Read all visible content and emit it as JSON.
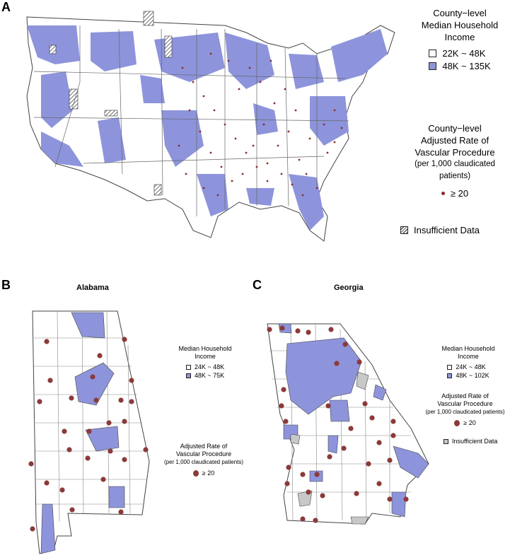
{
  "panels": {
    "a": {
      "letter": "A",
      "legend_income_title": [
        "County−level",
        "Median Household",
        "Income"
      ],
      "income_low": "22K ~ 48K",
      "income_high": "48K ~ 135K",
      "legend_rate_title": [
        "County−level",
        "Adjusted Rate of",
        "Vascular Procedure",
        "(per 1,000 claudicated patients)"
      ],
      "rate_label": "≥ 20",
      "insufficient": "Insufficient Data"
    },
    "b": {
      "letter": "B",
      "title": "Alabama",
      "legend_income_title": [
        "Median Household",
        "Income"
      ],
      "income_low": "24K ~ 48K",
      "income_high": "48K ~ 75K",
      "legend_rate_title": [
        "Adjusted Rate of",
        "Vascular Procedure",
        "(per 1,000 claudicated patients)"
      ],
      "rate_label": "≥ 20"
    },
    "c": {
      "letter": "C",
      "title": "Georgia",
      "legend_income_title": [
        "Median Household",
        "Income"
      ],
      "income_low": "24K ~ 48K",
      "income_high": "48K ~ 102K",
      "legend_rate_title": [
        "Adjusted Rate of",
        "Vascular Procedure",
        "(per 1,000 claudicated patients)"
      ],
      "rate_label": "≥ 20",
      "insufficient": "Insufficient Data"
    }
  },
  "colors": {
    "low_income": "#ffffff",
    "high_income": "#8d94db",
    "rate_dot": "#8b2c2c",
    "insufficient": "#c8c8c8",
    "border": "#555555"
  }
}
